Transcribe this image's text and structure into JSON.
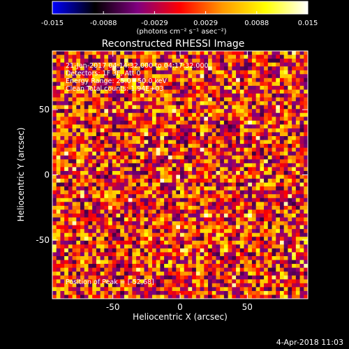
{
  "colorbar": {
    "ticks": [
      "-0.015",
      "-0.0088",
      "-0.0029",
      "0.0029",
      "0.0088",
      "0.015"
    ],
    "units": "(photons cm⁻² s⁻¹ asec⁻²)",
    "range": [
      -0.015,
      0.015
    ],
    "colors": [
      "#0000ff",
      "#000000",
      "#800080",
      "#ff0000",
      "#ff9900",
      "#ffff00",
      "#ffffff"
    ]
  },
  "plot": {
    "title": "Reconstructed RHESSI Image",
    "info_lines": [
      "21-Jan-2017 04:14:32.000 to 04:17:32.000",
      "Detectors: 1F 3F, Att 0",
      "Energy Range: 25.0 - 50.0 keV",
      "Clean    Total counts: 1.94E+03"
    ],
    "peak_label": "Position of Peak = [-52,68]"
  },
  "footer": {
    "date": "4-Apr-2018 11:03"
  },
  "chart_data": {
    "type": "heatmap",
    "title": "Reconstructed RHESSI Image",
    "xlabel": "Heliocentric X (arcsec)",
    "ylabel": "Heliocentric Y (arcsec)",
    "xlim": [
      -95,
      95
    ],
    "ylim": [
      -95,
      95
    ],
    "x_ticks": [
      -50,
      0,
      50
    ],
    "y_ticks": [
      50,
      0,
      -50
    ],
    "colorscale_range": [
      -0.015,
      0.015
    ],
    "grid_cells": 64,
    "grid": false
  }
}
